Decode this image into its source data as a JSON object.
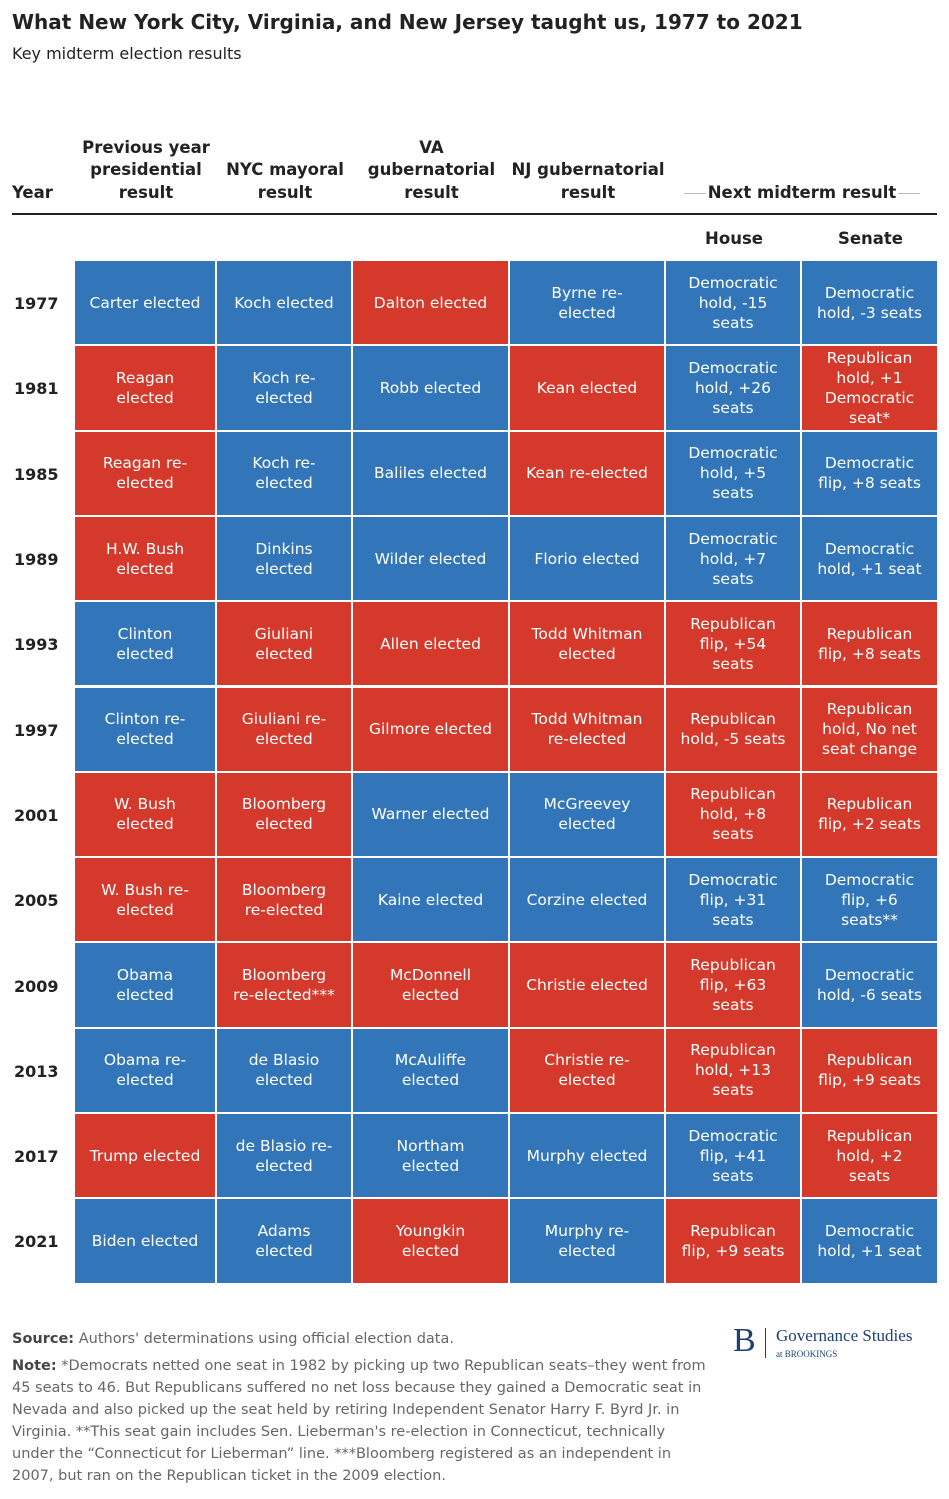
{
  "header": {
    "title": "What New York City, Virginia, and New Jersey taught us, 1977 to 2021",
    "subtitle": "Key midterm election results"
  },
  "table": {
    "columns": [
      "Year",
      "Previous year presidential result",
      "NYC mayoral result",
      "VA gubernatorial result",
      "NJ gubernatorial result"
    ],
    "group_header": "Next midterm result",
    "subcolumns": [
      "House",
      "Senate"
    ],
    "rows": [
      {
        "year": "1977",
        "cells": [
          "Carter elected",
          "Koch elected",
          "Dalton elected",
          "Byrne re-elected",
          "Democratic hold, -15 seats",
          "Democratic hold, -3 seats"
        ],
        "colors": [
          "#3276b9",
          "#3276b9",
          "#d5392b",
          "#3276b9",
          "#3276b9",
          "#3276b9"
        ]
      },
      {
        "year": "1981",
        "cells": [
          "Reagan elected",
          "Koch re-elected",
          "Robb elected",
          "Kean elected",
          "Democratic hold, +26 seats",
          "Republican hold, +1 Democratic seat*"
        ],
        "colors": [
          "#d5392b",
          "#3276b9",
          "#3276b9",
          "#d5392b",
          "#3276b9",
          "#d5392b"
        ]
      },
      {
        "year": "1985",
        "cells": [
          "Reagan re-elected",
          "Koch re-elected",
          "Baliles elected",
          "Kean re-elected",
          "Democratic hold, +5 seats",
          "Democratic flip, +8 seats"
        ],
        "colors": [
          "#d5392b",
          "#3276b9",
          "#3276b9",
          "#d5392b",
          "#3276b9",
          "#3276b9"
        ]
      },
      {
        "year": "1989",
        "cells": [
          "H.W. Bush elected",
          "Dinkins elected",
          "Wilder elected",
          "Florio elected",
          "Democratic hold, +7 seats",
          "Democratic hold, +1 seat"
        ],
        "colors": [
          "#d5392b",
          "#3276b9",
          "#3276b9",
          "#3276b9",
          "#3276b9",
          "#3276b9"
        ]
      },
      {
        "year": "1993",
        "cells": [
          "Clinton elected",
          "Giuliani elected",
          "Allen elected",
          "Todd Whitman elected",
          "Republican flip, +54 seats",
          "Republican flip, +8 seats"
        ],
        "colors": [
          "#3276b9",
          "#d5392b",
          "#d5392b",
          "#d5392b",
          "#d5392b",
          "#d5392b"
        ]
      },
      {
        "year": "1997",
        "cells": [
          "Clinton re-elected",
          "Giuliani re-elected",
          "Gilmore elected",
          "Todd Whitman re-elected",
          "Republican hold, -5 seats",
          "Republican hold, No net seat change"
        ],
        "colors": [
          "#3276b9",
          "#d5392b",
          "#d5392b",
          "#d5392b",
          "#d5392b",
          "#d5392b"
        ]
      },
      {
        "year": "2001",
        "cells": [
          "W. Bush elected",
          "Bloomberg elected",
          "Warner elected",
          "McGreevey elected",
          "Republican hold, +8 seats",
          "Republican flip, +2 seats"
        ],
        "colors": [
          "#d5392b",
          "#d5392b",
          "#3276b9",
          "#3276b9",
          "#d5392b",
          "#d5392b"
        ]
      },
      {
        "year": "2005",
        "cells": [
          "W. Bush re-elected",
          "Bloomberg re-elected",
          "Kaine elected",
          "Corzine elected",
          "Democratic flip, +31 seats",
          "Democratic flip, +6 seats**"
        ],
        "colors": [
          "#d5392b",
          "#d5392b",
          "#3276b9",
          "#3276b9",
          "#3276b9",
          "#3276b9"
        ]
      },
      {
        "year": "2009",
        "cells": [
          "Obama elected",
          "Bloomberg re-elected***",
          "McDonnell elected",
          "Christie elected",
          "Republican flip, +63 seats",
          "Democratic hold, -6 seats"
        ],
        "colors": [
          "#3276b9",
          "#d5392b",
          "#d5392b",
          "#d5392b",
          "#d5392b",
          "#3276b9"
        ]
      },
      {
        "year": "2013",
        "cells": [
          "Obama re-elected",
          "de Blasio elected",
          "McAuliffe elected",
          "Christie re-elected",
          "Republican hold, +13 seats",
          "Republican flip, +9 seats"
        ],
        "colors": [
          "#3276b9",
          "#3276b9",
          "#3276b9",
          "#d5392b",
          "#d5392b",
          "#d5392b"
        ]
      },
      {
        "year": "2017",
        "cells": [
          "Trump elected",
          "de Blasio re-elected",
          "Northam elected",
          "Murphy elected",
          "Democratic flip, +41 seats",
          "Republican hold, +2 seats"
        ],
        "colors": [
          "#d5392b",
          "#3276b9",
          "#3276b9",
          "#3276b9",
          "#3276b9",
          "#d5392b"
        ]
      },
      {
        "year": "2021",
        "cells": [
          "Biden elected",
          "Adams elected",
          "Youngkin elected",
          "Murphy re-elected",
          "Republican flip, +9 seats",
          "Democratic hold, +1 seat"
        ],
        "colors": [
          "#3276b9",
          "#3276b9",
          "#d5392b",
          "#3276b9",
          "#d5392b",
          "#3276b9"
        ]
      }
    ]
  },
  "footer": {
    "source_label": "Source:",
    "source": "Authors' determinations using official election data.",
    "note_label": "Note:",
    "note": "*Democrats netted one seat in 1982 by picking up two Republican seats–they went from 45 seats to 46. But Republicans suffered no net loss because they gained a Democratic seat in Nevada and also picked up the seat held by retiring Independent Senator Harry F. Byrd Jr. in Virginia. **This seat gain includes Sen. Lieberman's re-election in Connecticut, technically under the “Connecticut for Lieberman” line. ***Bloomberg registered as an independent in 2007, but ran on the Republican ticket in the 2009 election."
  },
  "logo": {
    "mark": "B",
    "name": "Governance Studies",
    "sub": "at BROOKINGS"
  }
}
